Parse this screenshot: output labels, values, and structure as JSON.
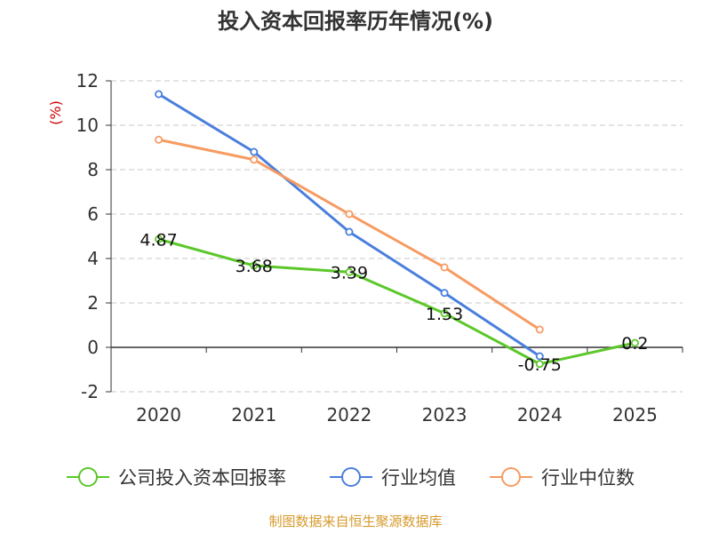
{
  "chart_data": {
    "type": "line",
    "title": "投入资本回报率历年情况(%)",
    "ylabel": "(%)",
    "categories": [
      "2020",
      "2021",
      "2022",
      "2023",
      "2024",
      "2025"
    ],
    "ylim": [
      -2,
      12
    ],
    "yticks": [
      "-2",
      "0",
      "2",
      "4",
      "6",
      "8",
      "10",
      "12"
    ],
    "grid": true,
    "legend_position": "bottom",
    "series": [
      {
        "name": "公司投入资本回报率",
        "color": "#5cc72a",
        "values": [
          4.87,
          3.68,
          3.39,
          1.53,
          -0.75,
          0.2
        ],
        "labels": [
          "4.87",
          "3.68",
          "3.39",
          "1.53",
          "-0.75",
          "0.2"
        ]
      },
      {
        "name": "行业均值",
        "color": "#4a7fdc",
        "values": [
          11.4,
          8.8,
          5.2,
          2.45,
          -0.4,
          null
        ]
      },
      {
        "name": "行业中位数",
        "color": "#f79b62",
        "values": [
          9.35,
          8.45,
          6.0,
          3.6,
          0.8,
          null
        ]
      }
    ]
  },
  "source": {
    "text": "制图数据来自恒生聚源数据库",
    "color": "#d69a2c"
  },
  "ylabel_color": "#cc0000"
}
